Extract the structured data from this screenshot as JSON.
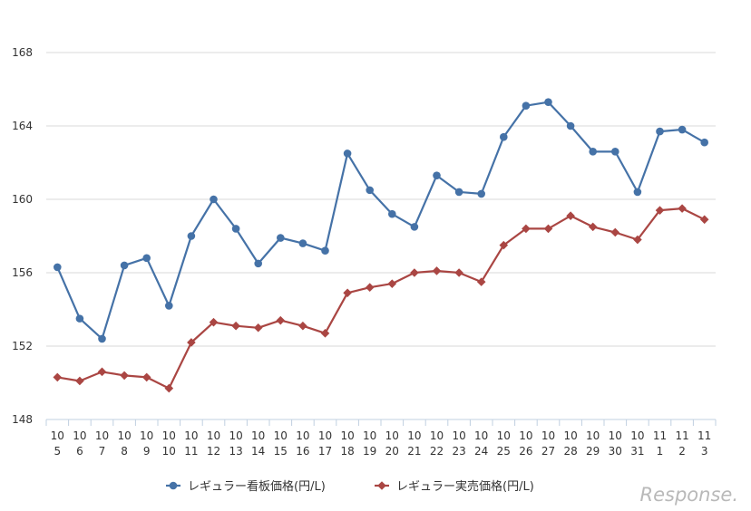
{
  "chart_data": {
    "type": "line",
    "title": "",
    "xlabel": "",
    "ylabel": "",
    "ylim": [
      148,
      168
    ],
    "yticks": [
      "148",
      "152",
      "156",
      "160",
      "164",
      "168"
    ],
    "categories": [
      {
        "month": "10",
        "day": "5"
      },
      {
        "month": "10",
        "day": "6"
      },
      {
        "month": "10",
        "day": "7"
      },
      {
        "month": "10",
        "day": "8"
      },
      {
        "month": "10",
        "day": "9"
      },
      {
        "month": "10",
        "day": "10"
      },
      {
        "month": "10",
        "day": "11"
      },
      {
        "month": "10",
        "day": "12"
      },
      {
        "month": "10",
        "day": "13"
      },
      {
        "month": "10",
        "day": "14"
      },
      {
        "month": "10",
        "day": "15"
      },
      {
        "month": "10",
        "day": "16"
      },
      {
        "month": "10",
        "day": "17"
      },
      {
        "month": "10",
        "day": "18"
      },
      {
        "month": "10",
        "day": "19"
      },
      {
        "month": "10",
        "day": "20"
      },
      {
        "month": "10",
        "day": "21"
      },
      {
        "month": "10",
        "day": "22"
      },
      {
        "month": "10",
        "day": "23"
      },
      {
        "month": "10",
        "day": "24"
      },
      {
        "month": "10",
        "day": "25"
      },
      {
        "month": "10",
        "day": "26"
      },
      {
        "month": "10",
        "day": "27"
      },
      {
        "month": "10",
        "day": "28"
      },
      {
        "month": "10",
        "day": "29"
      },
      {
        "month": "10",
        "day": "30"
      },
      {
        "month": "10",
        "day": "31"
      },
      {
        "month": "11",
        "day": "1"
      },
      {
        "month": "11",
        "day": "2"
      },
      {
        "month": "11",
        "day": "3"
      }
    ],
    "series": [
      {
        "name": "レギュラー看板価格(円/L)",
        "color": "#4572a7",
        "marker": "circle",
        "values": [
          156.3,
          153.5,
          152.4,
          156.4,
          156.8,
          154.2,
          158.0,
          160.0,
          158.4,
          156.5,
          157.9,
          157.6,
          157.2,
          162.5,
          160.5,
          159.2,
          158.5,
          161.3,
          160.4,
          160.3,
          163.4,
          165.1,
          165.3,
          164.0,
          162.6,
          162.6,
          160.4,
          163.7,
          163.8,
          163.1
        ]
      },
      {
        "name": "レギュラー実売価格(円/L)",
        "color": "#aa4643",
        "marker": "diamond",
        "values": [
          150.3,
          150.1,
          150.6,
          150.4,
          150.3,
          149.7,
          152.2,
          153.3,
          153.1,
          153.0,
          153.4,
          153.1,
          152.7,
          154.9,
          155.2,
          155.4,
          156.0,
          156.1,
          156.0,
          155.5,
          157.5,
          158.4,
          158.4,
          159.1,
          158.5,
          158.2,
          157.8,
          159.4,
          159.5,
          158.9
        ]
      }
    ],
    "grid": "horizontal",
    "legend": "bottom-center"
  },
  "watermark": "Response."
}
